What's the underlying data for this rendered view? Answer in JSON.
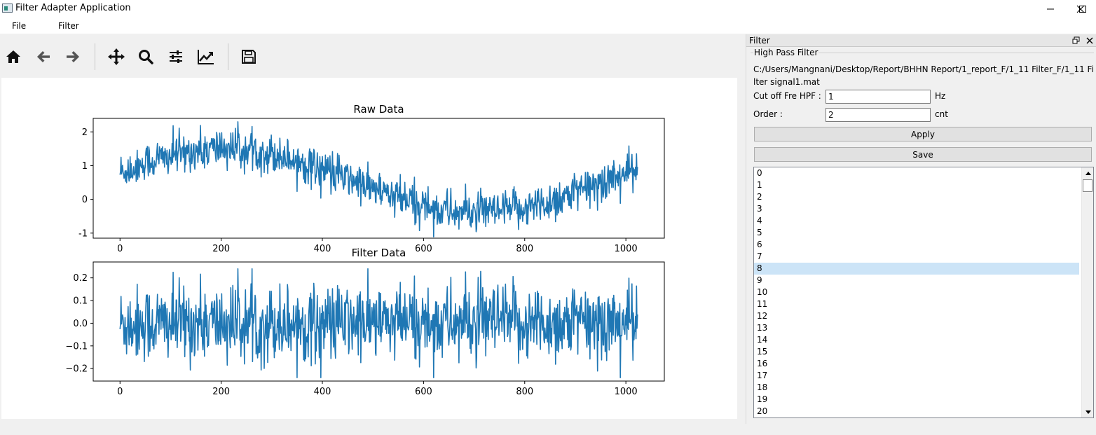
{
  "window": {
    "title": "Filter Adapter Application"
  },
  "menu": {
    "items": [
      "File",
      "Filter"
    ]
  },
  "toolbar": {
    "tools": [
      "home-icon",
      "back-arrow-icon",
      "forward-arrow-icon",
      "pan-icon",
      "zoom-icon",
      "configure-subplots-icon",
      "edit-axis-icon",
      "save-icon"
    ]
  },
  "dock": {
    "title": "Filter",
    "group_title": "High Pass Filter",
    "file_path": "C:/Users/Mangnani/Desktop/Report/BHHN Report/1_report_F/1_11 Filter_F/1_11 Filter signal1.mat",
    "cutoff": {
      "label": "Cut off Fre HPF :",
      "value": "1",
      "unit": "Hz"
    },
    "order": {
      "label": "Order :",
      "value": "2",
      "unit": "cnt"
    },
    "apply_label": "Apply",
    "save_label": "Save",
    "list_items": [
      "0",
      "1",
      "2",
      "3",
      "4",
      "5",
      "6",
      "7",
      "8",
      "9",
      "10",
      "11",
      "12",
      "13",
      "14",
      "15",
      "16",
      "17",
      "18",
      "19",
      "20"
    ],
    "selected_index": 8
  },
  "chart_data": [
    {
      "type": "line",
      "title": "Raw Data",
      "xlabel": "",
      "ylabel": "",
      "xlim": [
        -53,
        1076
      ],
      "ylim": [
        -1.15,
        2.4
      ],
      "xticks": [
        0,
        200,
        400,
        600,
        800,
        1000
      ],
      "yticks": [
        -1,
        0,
        1,
        2
      ],
      "n_points": 1024,
      "color": "#1f77b4",
      "description": "noisy sine wave, one period over ~1024 samples, amplitude ~1, offset ~0.5, noise ~±0.4"
    },
    {
      "type": "line",
      "title": "Filter Data",
      "xlabel": "",
      "ylabel": "",
      "xlim": [
        -53,
        1076
      ],
      "ylim": [
        -0.255,
        0.27
      ],
      "xticks": [
        0,
        200,
        400,
        600,
        800,
        1000
      ],
      "yticks": [
        -0.2,
        -0.1,
        0.0,
        0.1,
        0.2
      ],
      "ytick_labels": [
        "−0.2",
        "−0.1",
        "0.0",
        "0.1",
        "0.2"
      ],
      "n_points": 1024,
      "color": "#1f77b4",
      "description": "high-pass filtered noise around 0, range ~±0.24"
    }
  ]
}
